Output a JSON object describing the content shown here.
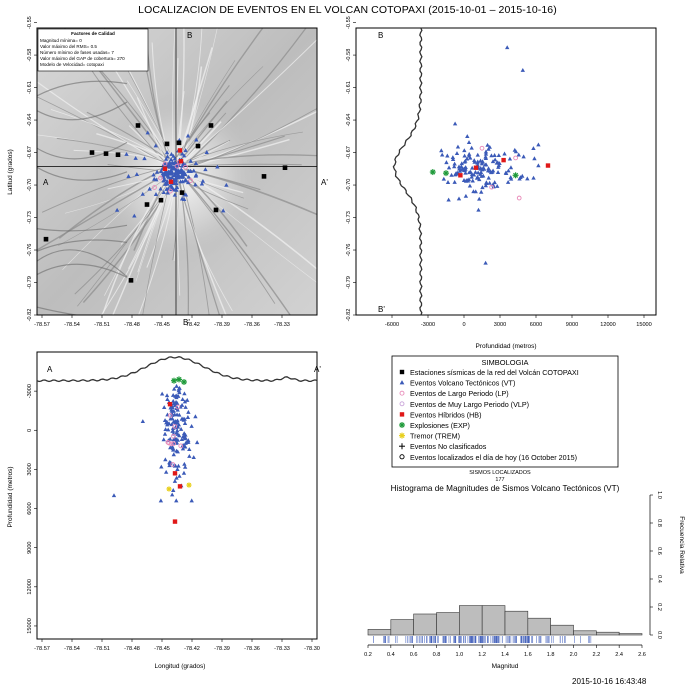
{
  "title": "LOCALIZACION DE EVENTOS EN EL VOLCAN COTOPAXI (2015-10-01 – 2015-10-16)",
  "timestamp": "2015-10-16 16:43:48",
  "colors": {
    "vt": "#3b5ab8",
    "lp": "#e889b8",
    "vlp": "#c8a2d8",
    "hb": "#e01818",
    "exp": "#1f9a3a",
    "trem": "#e8d020",
    "station": "#000000",
    "terrain": "#c9c9c9"
  },
  "quality_box": {
    "title": "Factores de Calidad",
    "lines": [
      "Magnitud mínima= 0",
      "Valor máximo del RMS= 0.5",
      "Número mínimo de fases usadas= 7",
      "Valor máximo del GAP de cobertura= 270",
      "Modelo de Velocidad= cotopaxi"
    ]
  },
  "legend": {
    "title": "SIMBOLOGIA",
    "items": [
      {
        "icon": "black-square",
        "label": "Estaciones sísmicas de la red del Volcán COTOPAXI"
      },
      {
        "icon": "blue-triangle",
        "label": "Eventos Volcano Tectónicos (VT)"
      },
      {
        "icon": "pink-circle",
        "label": "Eventos de Largo Periodo (LP)"
      },
      {
        "icon": "purple-circle",
        "label": "Eventos de Muy Largo Periodo (VLP)"
      },
      {
        "icon": "red-square",
        "label": "Eventos Híbridos (HB)"
      },
      {
        "icon": "green-star",
        "label": "Explosiones (EXP)"
      },
      {
        "icon": "yellow-star",
        "label": "Tremor (TREM)"
      },
      {
        "icon": "black-plus",
        "label": "Eventos No clasificados"
      },
      {
        "icon": "open-circle",
        "label": "Eventos localizados el día de hoy (16 October 2015)"
      }
    ]
  },
  "sismos": {
    "label": "SISMOS LOCALIZADOS",
    "count": "177"
  },
  "chart_data": [
    {
      "type": "scatter",
      "panel": "map",
      "ylabel": "Latitud (grados)",
      "xlim": [
        -78.575,
        -78.295
      ],
      "ylim": [
        -0.82,
        -0.555
      ],
      "xticks": [
        "-78.57",
        "-78.54",
        "-78.51",
        "-78.48",
        "-78.45",
        "-78.42",
        "-78.39",
        "-78.36",
        "-78.33"
      ],
      "xtick_values": [
        -78.57,
        -78.54,
        -78.51,
        -78.48,
        -78.45,
        -78.42,
        -78.39,
        -78.36,
        -78.33
      ],
      "yticks": [
        "-0.55",
        "-0.58",
        "-0.61",
        "-0.64",
        "-0.67",
        "-0.70",
        "-0.73",
        "-0.76",
        "-0.79",
        "-0.82"
      ],
      "ytick_values": [
        -0.55,
        -0.58,
        -0.61,
        -0.64,
        -0.67,
        -0.7,
        -0.73,
        -0.76,
        -0.79,
        -0.82
      ],
      "section_labels": {
        "a": "A",
        "a_prime": "A'",
        "b": "B",
        "b_prime": "B'"
      },
      "profile_lines": {
        "lon": -78.436,
        "lat": -0.683
      },
      "stations": [
        [
          -78.474,
          -0.645
        ],
        [
          -78.401,
          -0.645
        ],
        [
          -78.52,
          -0.67
        ],
        [
          -78.506,
          -0.671
        ],
        [
          -78.494,
          -0.672
        ],
        [
          -78.414,
          -0.664
        ],
        [
          -78.433,
          -0.661
        ],
        [
          -78.445,
          -0.662
        ],
        [
          -78.348,
          -0.692
        ],
        [
          -78.327,
          -0.684
        ],
        [
          -78.465,
          -0.718
        ],
        [
          -78.566,
          -0.75
        ],
        [
          -78.481,
          -0.788
        ],
        [
          -78.451,
          -0.714
        ],
        [
          -78.43,
          -0.707
        ],
        [
          -78.396,
          -0.723
        ]
      ],
      "vt_center": [
        -78.437,
        -0.689
      ],
      "vt_count": 170,
      "hb": [
        [
          -78.447,
          -0.685
        ],
        [
          -78.431,
          -0.678
        ],
        [
          -78.441,
          -0.697
        ],
        [
          -78.432,
          -0.668
        ]
      ]
    },
    {
      "type": "scatter",
      "panel": "latitude-depth",
      "xlabel": "Profundidad (metros)",
      "xlim": [
        -9000,
        16000
      ],
      "ylim": [
        -0.82,
        -0.555
      ],
      "xticks": [
        "-6000",
        "-3000",
        "0",
        "3000",
        "6000",
        "9000",
        "12000",
        "15000"
      ],
      "xtick_values": [
        -6000,
        -3000,
        0,
        3000,
        6000,
        9000,
        12000,
        15000
      ],
      "yticks": [
        "-0.55",
        "-0.58",
        "-0.61",
        "-0.64",
        "-0.67",
        "-0.70",
        "-0.73",
        "-0.76",
        "-0.79",
        "-0.82"
      ],
      "ytick_values": [
        -0.55,
        -0.58,
        -0.61,
        -0.64,
        -0.67,
        -0.7,
        -0.73,
        -0.76,
        -0.79,
        -0.82
      ],
      "section_labels": {
        "top": "B",
        "bottom": "B'"
      },
      "hb": [
        [
          3300,
          -0.677
        ],
        [
          7000,
          -0.682
        ],
        [
          1000,
          -0.684
        ],
        [
          -300,
          -0.691
        ]
      ],
      "exp": [
        [
          -2600,
          -0.688
        ],
        [
          4300,
          -0.691
        ],
        [
          -1500,
          -0.689
        ]
      ],
      "lp": [
        [
          1500,
          -0.666
        ],
        [
          4300,
          -0.675
        ],
        [
          2300,
          -0.702
        ],
        [
          4600,
          -0.712
        ]
      ],
      "outliers": [
        [
          3600,
          -0.573
        ],
        [
          1800,
          -0.772
        ],
        [
          4900,
          -0.594
        ]
      ]
    },
    {
      "type": "scatter",
      "panel": "longitude-depth",
      "xlabel": "Longitud (grados)",
      "ylabel": "Profundidad (metros)",
      "xlim": [
        -78.575,
        -78.295
      ],
      "ylim": [
        -6000,
        16000
      ],
      "xticks": [
        "-78.57",
        "-78.54",
        "-78.51",
        "-78.48",
        "-78.45",
        "-78.42",
        "-78.39",
        "-78.36",
        "-78.33",
        "-78.30"
      ],
      "xtick_values": [
        -78.57,
        -78.54,
        -78.51,
        -78.48,
        -78.45,
        -78.42,
        -78.39,
        -78.36,
        -78.33,
        -78.3
      ],
      "yticks": [
        "-3000",
        "0",
        "3000",
        "6000",
        "9000",
        "12000",
        "15000"
      ],
      "ytick_values": [
        -3000,
        0,
        3000,
        6000,
        9000,
        12000,
        15000
      ],
      "section_labels": {
        "left": "A",
        "right": "A'"
      },
      "hb": [
        [
          -78.442,
          -2000
        ],
        [
          -78.437,
          3300
        ],
        [
          -78.432,
          4300
        ],
        [
          -78.437,
          7000
        ]
      ],
      "exp": [
        [
          -78.438,
          -3800
        ],
        [
          -78.433,
          -3900
        ],
        [
          -78.428,
          -3700
        ]
      ],
      "trem": [
        [
          -78.443,
          4500
        ],
        [
          -78.423,
          4200
        ]
      ],
      "outliers": [
        [
          -78.498,
          5000
        ]
      ]
    },
    {
      "type": "bar",
      "panel": "histogram",
      "title": "Histograma de Magnitudes de Sismos Volcano Tectónicos (VT)",
      "xlabel": "Magnitud",
      "ylabel": "Frecuencia Relativa",
      "xlim": [
        0.2,
        2.6
      ],
      "ylim": [
        0,
        1.0
      ],
      "xticks": [
        "0.2",
        "0.4",
        "0.6",
        "0.8",
        "1.0",
        "1.2",
        "1.4",
        "1.6",
        "1.8",
        "2.0",
        "2.2",
        "2.4",
        "2.6"
      ],
      "xtick_values": [
        0.2,
        0.4,
        0.6,
        0.8,
        1.0,
        1.2,
        1.4,
        1.6,
        1.8,
        2.0,
        2.2,
        2.4,
        2.6
      ],
      "yticks": [
        "0.0",
        "0.2",
        "0.4",
        "0.6",
        "0.8",
        "1.0"
      ],
      "ytick_values": [
        0,
        0.2,
        0.4,
        0.6,
        0.8,
        1.0
      ],
      "bins": [
        {
          "from": 0.2,
          "to": 0.4,
          "value": 0.04
        },
        {
          "from": 0.4,
          "to": 0.6,
          "value": 0.11
        },
        {
          "from": 0.6,
          "to": 0.8,
          "value": 0.15
        },
        {
          "from": 0.8,
          "to": 1.0,
          "value": 0.16
        },
        {
          "from": 1.0,
          "to": 1.2,
          "value": 0.21
        },
        {
          "from": 1.2,
          "to": 1.4,
          "value": 0.21
        },
        {
          "from": 1.4,
          "to": 1.6,
          "value": 0.17
        },
        {
          "from": 1.6,
          "to": 1.8,
          "value": 0.12
        },
        {
          "from": 1.8,
          "to": 2.0,
          "value": 0.07
        },
        {
          "from": 2.0,
          "to": 2.2,
          "value": 0.03
        },
        {
          "from": 2.2,
          "to": 2.4,
          "value": 0.02
        },
        {
          "from": 2.4,
          "to": 2.6,
          "value": 0.01
        }
      ]
    }
  ]
}
